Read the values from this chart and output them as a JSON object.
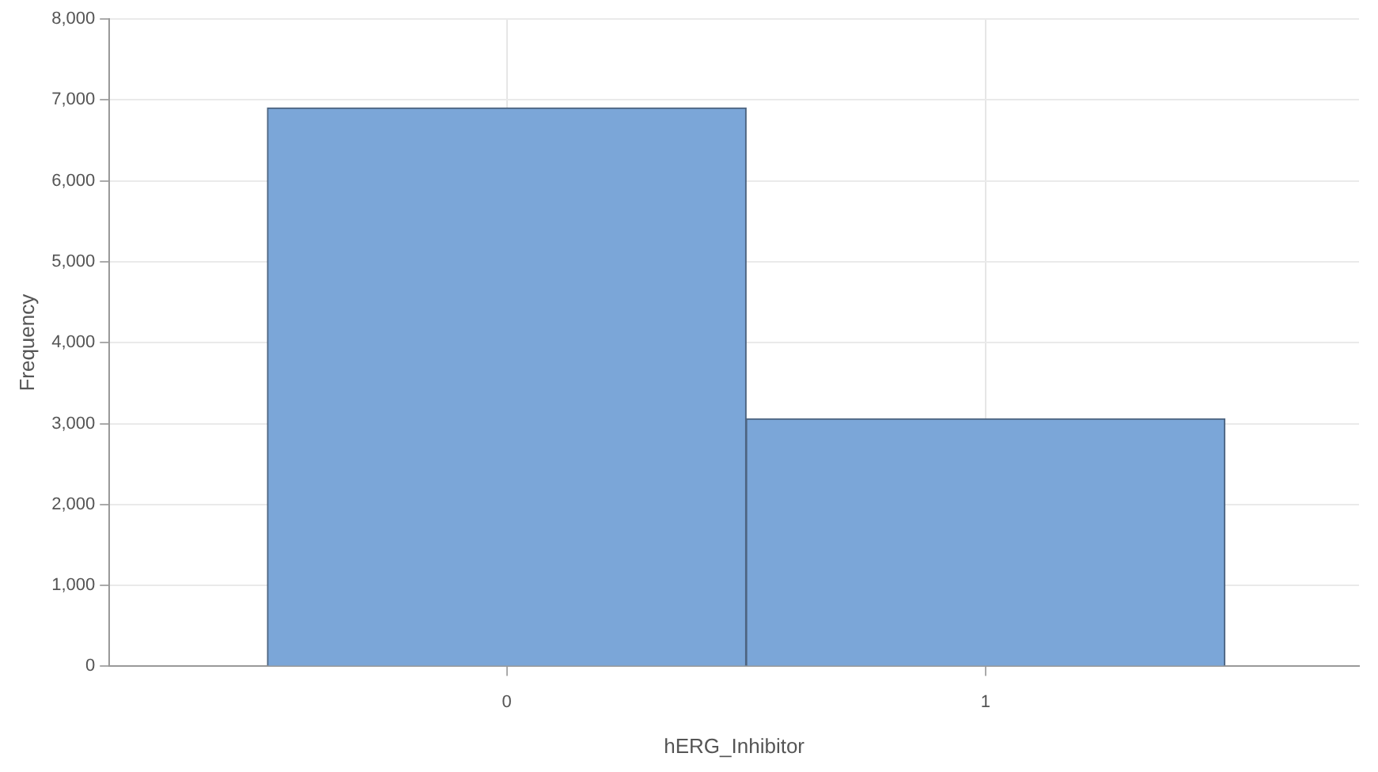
{
  "chart_data": {
    "type": "histogram",
    "xlabel": "hERG_Inhibitor",
    "ylabel": "Frequency",
    "bins": [
      -0.5,
      0.5,
      1.5
    ],
    "values": [
      6900,
      3060
    ],
    "color": "#7ba6d8",
    "xlim": [
      -0.83,
      1.78
    ],
    "xticks": [
      0,
      1
    ],
    "ylim": [
      0,
      8000
    ],
    "yticks": [
      0,
      {
        "value": 1000,
        "label": "1,000"
      },
      {
        "value": 2000,
        "label": "2,000"
      },
      {
        "value": 3000,
        "label": "3,000"
      },
      {
        "value": 4000,
        "label": "4,000"
      },
      {
        "value": 5000,
        "label": "5,000"
      },
      {
        "value": 6000,
        "label": "6,000"
      },
      {
        "value": 7000,
        "label": "7,000"
      },
      {
        "value": 8000,
        "label": "8,000"
      }
    ],
    "grid": true
  }
}
